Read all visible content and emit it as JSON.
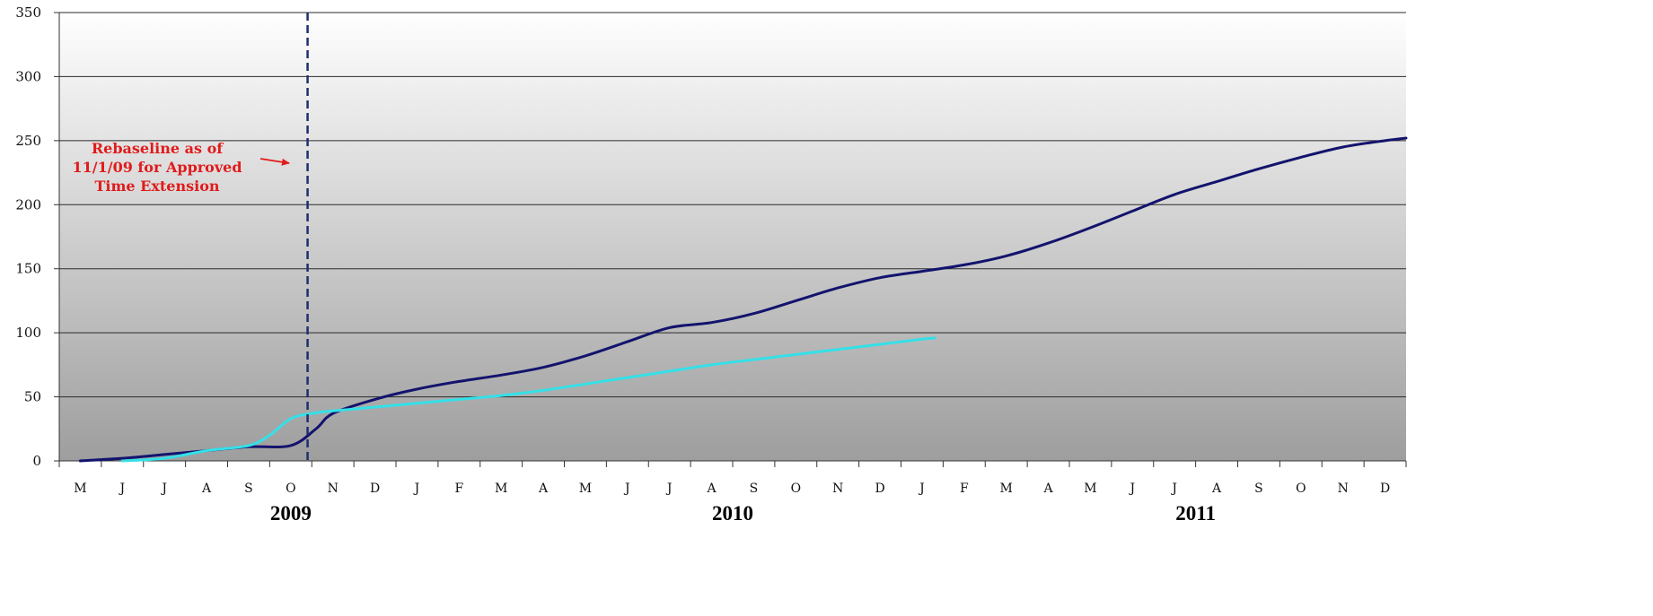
{
  "chart_data": {
    "type": "line",
    "x_months": [
      "M",
      "J",
      "J",
      "A",
      "S",
      "O",
      "N",
      "D",
      "J",
      "F",
      "M",
      "A",
      "M",
      "J",
      "J",
      "A",
      "S",
      "O",
      "N",
      "D",
      "J",
      "F",
      "M",
      "A",
      "M",
      "J",
      "J",
      "A",
      "S",
      "O",
      "N",
      "D"
    ],
    "years": [
      {
        "label": "2009",
        "month_index": 5
      },
      {
        "label": "2010",
        "month_index": 15.5
      },
      {
        "label": "2011",
        "month_index": 26.5
      }
    ],
    "ylim": [
      0,
      350
    ],
    "yticks": [
      0,
      50,
      100,
      150,
      200,
      250,
      300,
      350
    ],
    "grid": true,
    "legend": "none",
    "series": [
      {
        "color": "#13136e",
        "x": [
          0,
          1,
          2,
          3,
          4,
          5,
          5.6,
          6,
          7,
          8,
          9,
          10,
          11,
          12,
          13,
          14,
          15,
          16,
          17,
          18,
          19,
          20,
          21,
          22,
          23,
          24,
          25,
          26,
          27,
          28,
          29,
          30,
          31,
          31.5
        ],
        "y": [
          0,
          2,
          5,
          8,
          11,
          12,
          25,
          37,
          48,
          56,
          62,
          67,
          73,
          82,
          93,
          104,
          108,
          115,
          125,
          135,
          143,
          148,
          153,
          160,
          170,
          182,
          195,
          208,
          218,
          228,
          237,
          245,
          250,
          252
        ]
      },
      {
        "color": "#34e0e8",
        "x": [
          1,
          2,
          3,
          4,
          4.5,
          5,
          5.5,
          6,
          7,
          8,
          9,
          10,
          11,
          12,
          13,
          14,
          15,
          16,
          17,
          18,
          19,
          20,
          20.3
        ],
        "y": [
          0,
          2,
          8,
          12,
          20,
          33,
          37,
          39,
          42,
          45,
          48,
          51,
          55,
          60,
          65,
          70,
          75,
          79,
          83,
          87,
          91,
          95,
          96
        ]
      }
    ],
    "reference_line": {
      "x": 5.4,
      "color": "#1f2e6e"
    },
    "annotation": {
      "lines": [
        "Rebaseline as of",
        "11/1/09 for Approved",
        "Time Extension"
      ],
      "color": "#e11b1b"
    }
  }
}
